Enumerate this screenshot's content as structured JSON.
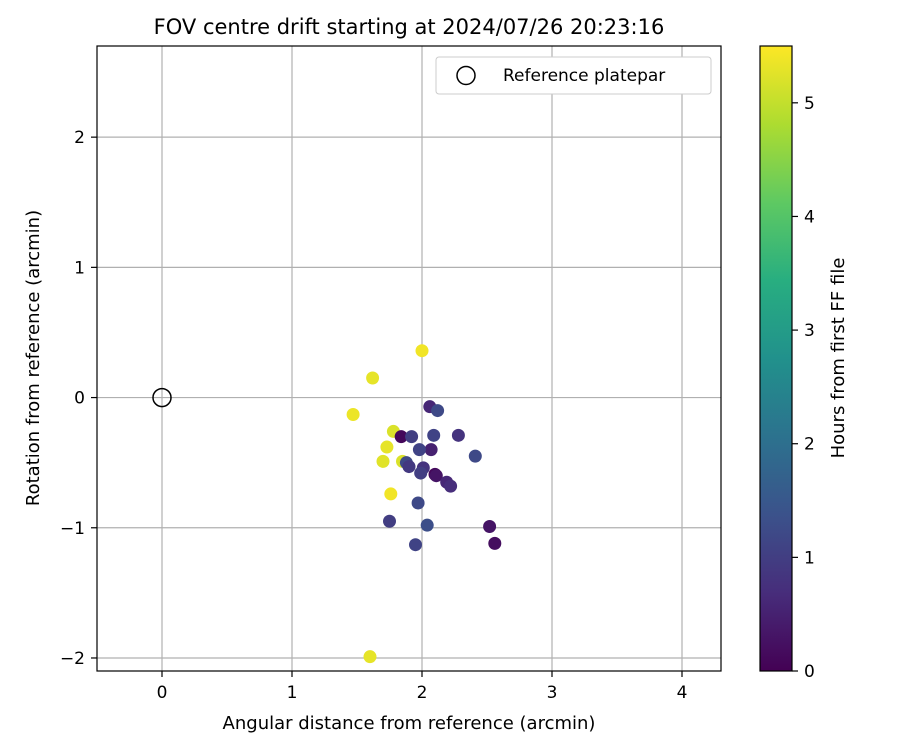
{
  "chart_data": {
    "type": "scatter",
    "title": "FOV centre drift starting at 2024/07/26 20:23:16",
    "xlabel": "Angular distance from reference (arcmin)",
    "ylabel": "Rotation from reference (arcmin)",
    "xlim": [
      -0.5,
      4.3
    ],
    "ylim": [
      -2.1,
      2.7
    ],
    "xticks": [
      "0",
      "1",
      "2",
      "3",
      "4"
    ],
    "yticks": [
      "−2",
      "−1",
      "0",
      "1",
      "2"
    ],
    "grid": true,
    "legend": {
      "position": "top-right",
      "label": "Reference platepar"
    },
    "reference_point": {
      "x": 0,
      "y": 0
    },
    "colorbar": {
      "label": "Hours from first FF file",
      "range": [
        0,
        5.5
      ],
      "ticks": [
        "0",
        "1",
        "2",
        "3",
        "4",
        "5"
      ],
      "colormap": "viridis"
    },
    "points": [
      {
        "x": 2.0,
        "y": 0.36,
        "h": 5.4
      },
      {
        "x": 1.62,
        "y": 0.15,
        "h": 5.3
      },
      {
        "x": 1.47,
        "y": -0.13,
        "h": 5.35
      },
      {
        "x": 1.78,
        "y": -0.26,
        "h": 5.2
      },
      {
        "x": 1.73,
        "y": -0.38,
        "h": 5.3
      },
      {
        "x": 1.7,
        "y": -0.49,
        "h": 5.25
      },
      {
        "x": 1.85,
        "y": -0.49,
        "h": 5.2
      },
      {
        "x": 1.76,
        "y": -0.74,
        "h": 5.4
      },
      {
        "x": 1.6,
        "y": -1.99,
        "h": 5.3
      },
      {
        "x": 1.84,
        "y": -0.3,
        "h": 0.1
      },
      {
        "x": 1.92,
        "y": -0.3,
        "h": 1.0
      },
      {
        "x": 2.06,
        "y": -0.07,
        "h": 0.6
      },
      {
        "x": 2.12,
        "y": -0.1,
        "h": 1.2
      },
      {
        "x": 2.09,
        "y": -0.29,
        "h": 1.1
      },
      {
        "x": 2.28,
        "y": -0.29,
        "h": 0.8
      },
      {
        "x": 2.07,
        "y": -0.4,
        "h": 0.5
      },
      {
        "x": 1.98,
        "y": -0.4,
        "h": 1.1
      },
      {
        "x": 1.88,
        "y": -0.5,
        "h": 1.2
      },
      {
        "x": 1.9,
        "y": -0.53,
        "h": 0.9
      },
      {
        "x": 2.01,
        "y": -0.54,
        "h": 0.8
      },
      {
        "x": 1.99,
        "y": -0.58,
        "h": 1.0
      },
      {
        "x": 2.1,
        "y": -0.59,
        "h": 0.1
      },
      {
        "x": 2.11,
        "y": -0.6,
        "h": 0.3
      },
      {
        "x": 2.19,
        "y": -0.65,
        "h": 0.6
      },
      {
        "x": 2.22,
        "y": -0.68,
        "h": 0.7
      },
      {
        "x": 2.41,
        "y": -0.45,
        "h": 1.2
      },
      {
        "x": 1.97,
        "y": -0.81,
        "h": 1.2
      },
      {
        "x": 1.75,
        "y": -0.95,
        "h": 1.0
      },
      {
        "x": 2.04,
        "y": -0.98,
        "h": 1.3
      },
      {
        "x": 2.52,
        "y": -0.99,
        "h": 0.3
      },
      {
        "x": 2.56,
        "y": -1.12,
        "h": 0.2
      },
      {
        "x": 1.95,
        "y": -1.13,
        "h": 1.1
      }
    ]
  }
}
